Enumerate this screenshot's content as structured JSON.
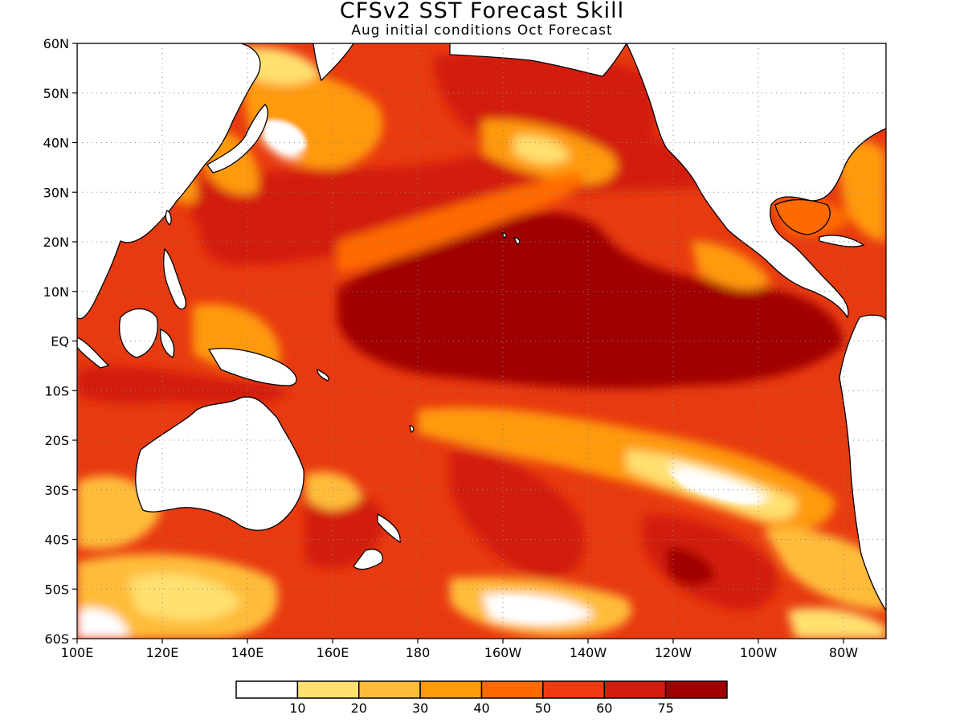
{
  "title": "CFSv2 SST Forecast Skill",
  "subtitle": "Aug initial conditions  Oct Forecast",
  "map": {
    "lon_range": [
      100,
      -70
    ],
    "lat_range": [
      -60,
      60
    ],
    "lat_ticks": [
      {
        "lat": 60,
        "label": "60N"
      },
      {
        "lat": 50,
        "label": "50N"
      },
      {
        "lat": 40,
        "label": "40N"
      },
      {
        "lat": 30,
        "label": "30N"
      },
      {
        "lat": 20,
        "label": "20N"
      },
      {
        "lat": 10,
        "label": "10N"
      },
      {
        "lat": 0,
        "label": "EQ"
      },
      {
        "lat": -10,
        "label": "10S"
      },
      {
        "lat": -20,
        "label": "20S"
      },
      {
        "lat": -30,
        "label": "30S"
      },
      {
        "lat": -40,
        "label": "40S"
      },
      {
        "lat": -50,
        "label": "50S"
      },
      {
        "lat": -60,
        "label": "60S"
      }
    ],
    "lon_ticks": [
      {
        "lon": 100,
        "label": "100E"
      },
      {
        "lon": 120,
        "label": "120E"
      },
      {
        "lon": 140,
        "label": "140E"
      },
      {
        "lon": 160,
        "label": "160E"
      },
      {
        "lon": 180,
        "label": "180"
      },
      {
        "lon": 200,
        "label": "160W"
      },
      {
        "lon": 220,
        "label": "140W"
      },
      {
        "lon": 240,
        "label": "120W"
      },
      {
        "lon": 260,
        "label": "100W"
      },
      {
        "lon": 280,
        "label": "80W"
      }
    ],
    "colors": {
      "land": "#ffffff",
      "coast": "#000000",
      "grid": "#aaaaaa",
      "high_skill": "#a00000",
      "ocean_base": "#e83a10"
    }
  },
  "colorbar": {
    "colors": [
      "#ffffff",
      "#ffe070",
      "#ffbc3a",
      "#ff9a0a",
      "#ff6a00",
      "#f03a10",
      "#d21b0c",
      "#a00000"
    ],
    "labels": [
      "10",
      "20",
      "30",
      "40",
      "50",
      "60",
      "75"
    ]
  }
}
